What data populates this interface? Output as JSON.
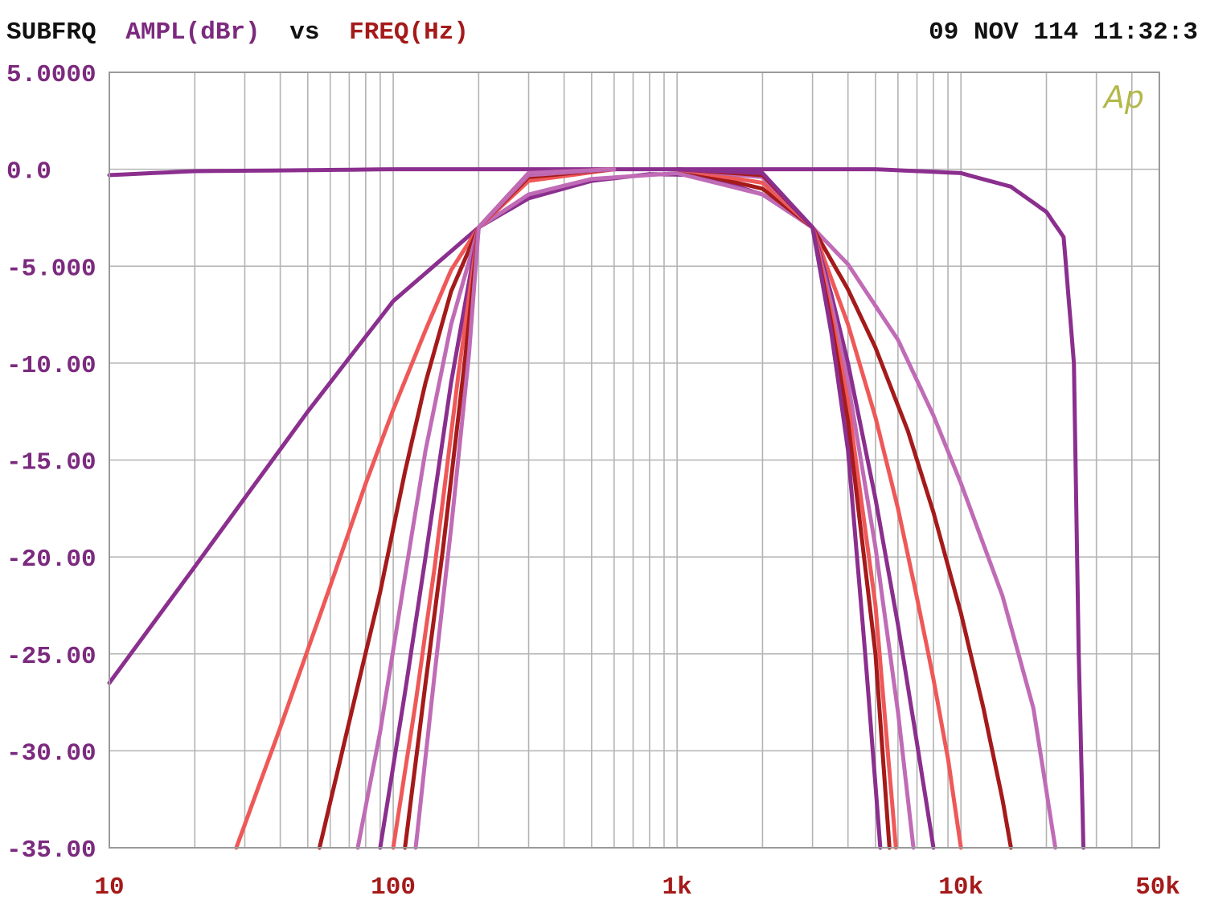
{
  "header": {
    "prefix": "SUBFRQ",
    "y_quantity": "AMPL(dBr)",
    "vs": "vs",
    "x_quantity": "FREQ(Hz)",
    "timestamp": "09 NOV 114 11:32:3"
  },
  "logo": {
    "text": "Ap"
  },
  "colors": {
    "background": "#ffffff",
    "grid": "#b3b3b3",
    "frame": "#9a9a9a",
    "header_text": "#111111",
    "y_axis_text": "#7b2a7e",
    "x_axis_text": "#a51a1a",
    "logo": "#b3b84a"
  },
  "chart_data": {
    "type": "line",
    "title": "SUBFRQ AMPL(dBr) vs FREQ(Hz)",
    "xlabel": "FREQ(Hz)",
    "ylabel": "AMPL(dBr)",
    "x_scale": "log",
    "xlim": [
      10,
      50000
    ],
    "ylim": [
      -35,
      5
    ],
    "grid": true,
    "x_tick_labels": [
      {
        "value": 10,
        "label": "10"
      },
      {
        "value": 100,
        "label": "100"
      },
      {
        "value": 1000,
        "label": "1k"
      },
      {
        "value": 10000,
        "label": "10k"
      },
      {
        "value": 50000,
        "label": "50k"
      }
    ],
    "y_tick_labels": [
      {
        "value": 5,
        "label": "5.0000"
      },
      {
        "value": 0,
        "label": "0.0"
      },
      {
        "value": -5,
        "label": "-5.000"
      },
      {
        "value": -10,
        "label": "-10.00"
      },
      {
        "value": -15,
        "label": "-15.00"
      },
      {
        "value": -20,
        "label": "-20.00"
      },
      {
        "value": -25,
        "label": "-25.00"
      },
      {
        "value": -30,
        "label": "-30.00"
      },
      {
        "value": -35,
        "label": "-35.00"
      }
    ],
    "series": [
      {
        "color": "#8b2f8e",
        "x": [
          10,
          20,
          50,
          100,
          200,
          500,
          1000,
          2000,
          5000,
          10000,
          15000,
          20000,
          23000,
          25000,
          26000,
          27000
        ],
        "y": [
          -0.3,
          -0.1,
          -0.05,
          0,
          0,
          0,
          0,
          0,
          0,
          -0.2,
          -0.9,
          -2.2,
          -3.5,
          -10,
          -25,
          -35
        ]
      },
      {
        "color": "#8b2f8e",
        "x": [
          10,
          20,
          50,
          100,
          200,
          300,
          500,
          800,
          1200,
          2000,
          3000
        ],
        "y": [
          -26.5,
          -20.5,
          -12.5,
          -6.8,
          -3.0,
          -1.5,
          -0.6,
          -0.25,
          -0.3,
          -1.3,
          -3.0
        ]
      },
      {
        "color": "#c06bb6",
        "x": [
          200,
          300,
          500,
          1000,
          2000,
          3000,
          4000,
          6000,
          8000,
          10000,
          14000,
          18000,
          21500
        ],
        "y": [
          -3.0,
          -1.3,
          -0.5,
          -0.2,
          -1.3,
          -3.0,
          -4.9,
          -8.8,
          -12.7,
          -16.2,
          -22.0,
          -27.8,
          -35
        ]
      },
      {
        "color": "#a51a1a",
        "x": [
          1000,
          2000,
          3000,
          4000,
          5000,
          6500,
          8000,
          10000,
          12000,
          14000,
          15000
        ],
        "y": [
          0,
          -1.0,
          -3.0,
          -6.2,
          -9.2,
          -13.5,
          -17.7,
          -22.9,
          -27.8,
          -32.5,
          -35
        ]
      },
      {
        "color": "#ef5858",
        "x": [
          1000,
          2000,
          3000,
          4000,
          5000,
          6000,
          7000,
          8000,
          9000,
          10000
        ],
        "y": [
          0,
          -0.7,
          -3.0,
          -8.0,
          -12.8,
          -17.5,
          -22.1,
          -26.3,
          -30.4,
          -35
        ]
      },
      {
        "color": "#8b2f8e",
        "x": [
          1000,
          2000,
          3000,
          3500,
          4000,
          5000,
          6000,
          7000,
          8000
        ],
        "y": [
          0,
          -0.4,
          -3.0,
          -6.5,
          -10.0,
          -17.0,
          -23.5,
          -29.6,
          -35
        ]
      },
      {
        "color": "#c06bb6",
        "x": [
          1000,
          2000,
          3000,
          3500,
          4000,
          5000,
          6000,
          6800
        ],
        "y": [
          0,
          -0.4,
          -3.0,
          -7.0,
          -11.0,
          -19.5,
          -28.0,
          -35
        ]
      },
      {
        "color": "#ef5858",
        "x": [
          1000,
          2000,
          3000,
          3500,
          4000,
          5000,
          5900
        ],
        "y": [
          0,
          -0.3,
          -3.0,
          -7.5,
          -12.0,
          -22.5,
          -35
        ]
      },
      {
        "color": "#a51a1a",
        "x": [
          1000,
          2000,
          3000,
          3500,
          4000,
          5000,
          5600
        ],
        "y": [
          0,
          -0.3,
          -3.0,
          -8.0,
          -13.0,
          -25.0,
          -35
        ]
      },
      {
        "color": "#8b2f8e",
        "x": [
          1000,
          2000,
          3000,
          3500,
          4000,
          4600,
          5200
        ],
        "y": [
          0,
          -0.2,
          -3.0,
          -8.5,
          -14.5,
          -25.0,
          -35
        ]
      },
      {
        "color": "#ef5858",
        "x": [
          28,
          40,
          60,
          80,
          100,
          130,
          160,
          200,
          300,
          600
        ],
        "y": [
          -35,
          -28.8,
          -21.5,
          -16.2,
          -12.4,
          -8.3,
          -5.2,
          -3.0,
          -0.6,
          0
        ]
      },
      {
        "color": "#a51a1a",
        "x": [
          55,
          70,
          90,
          110,
          130,
          160,
          200,
          300,
          600
        ],
        "y": [
          -35,
          -28.5,
          -21.8,
          -15.6,
          -11.0,
          -6.3,
          -3.0,
          -0.4,
          0
        ]
      },
      {
        "color": "#c06bb6",
        "x": [
          75,
          90,
          110,
          130,
          160,
          200,
          300,
          600
        ],
        "y": [
          -35,
          -29.0,
          -21.0,
          -14.5,
          -8.0,
          -3.0,
          -0.3,
          0
        ]
      },
      {
        "color": "#8b2f8e",
        "x": [
          90,
          110,
          130,
          160,
          200,
          300,
          600
        ],
        "y": [
          -35,
          -27.0,
          -20.0,
          -11.0,
          -3.0,
          -0.2,
          0
        ]
      },
      {
        "color": "#ef5858",
        "x": [
          100,
          120,
          140,
          170,
          200,
          300,
          600
        ],
        "y": [
          -35,
          -27.5,
          -20.5,
          -10.5,
          -3.0,
          -0.2,
          0
        ]
      },
      {
        "color": "#a51a1a",
        "x": [
          110,
          130,
          150,
          180,
          200,
          300,
          600
        ],
        "y": [
          -35,
          -26.5,
          -19.5,
          -9.5,
          -3.0,
          -0.2,
          0
        ]
      },
      {
        "color": "#c06bb6",
        "x": [
          120,
          140,
          160,
          185,
          200,
          300,
          600
        ],
        "y": [
          -35,
          -26.0,
          -18.5,
          -9.5,
          -3.0,
          -0.2,
          0
        ]
      }
    ]
  }
}
